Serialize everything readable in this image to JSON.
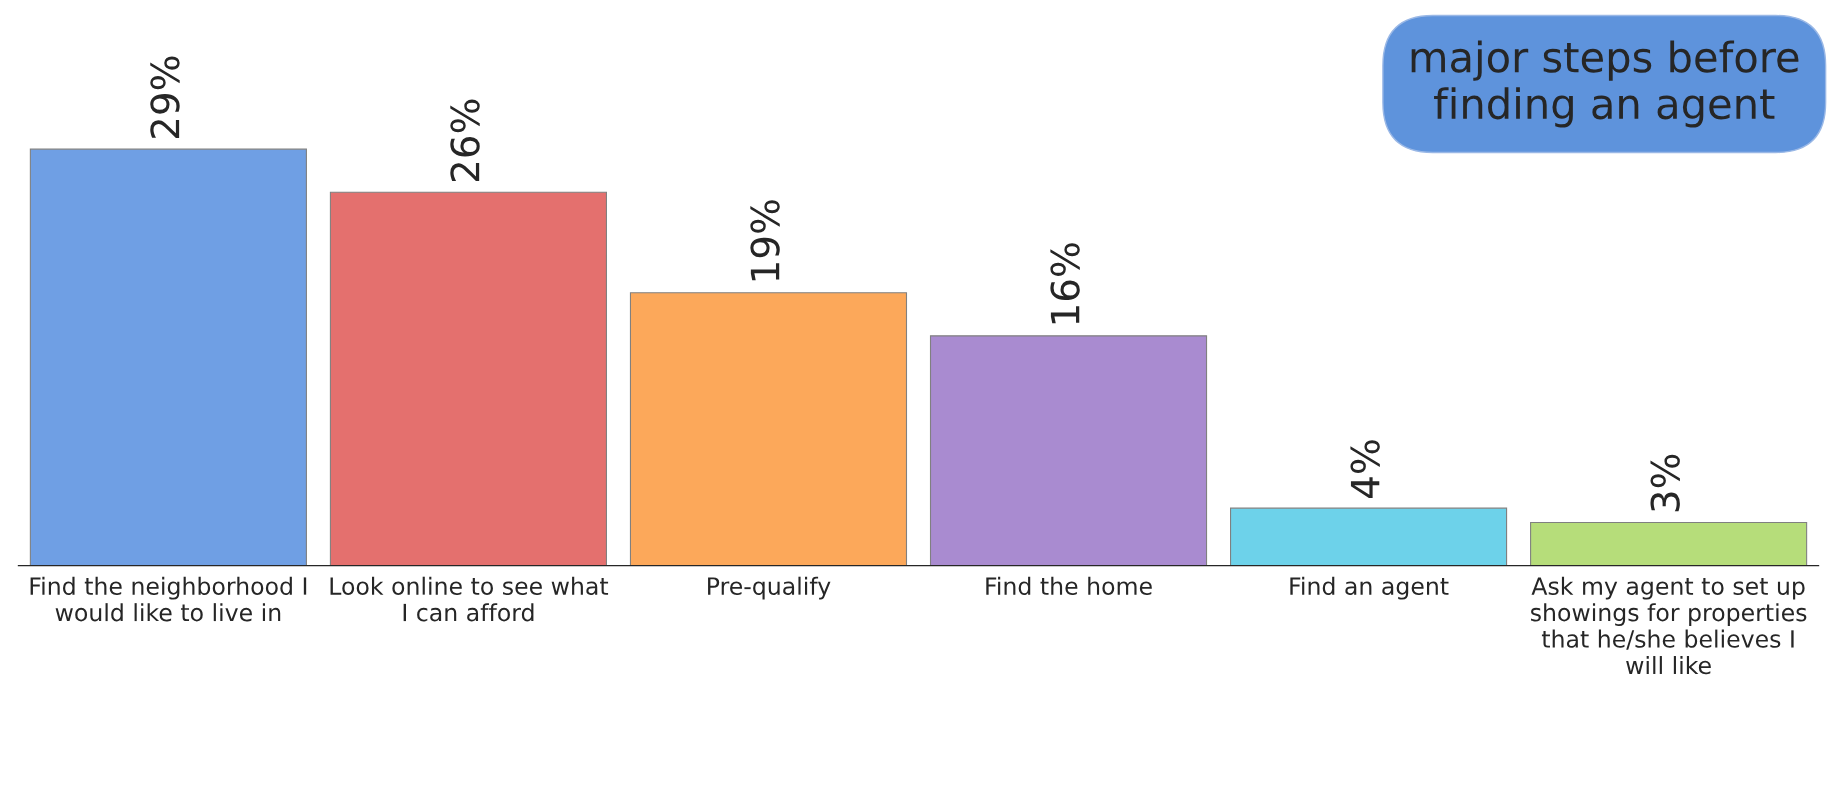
{
  "chart_data": {
    "type": "bar",
    "categories": [
      "Find the neighborhood I would like to live in",
      "Look online to see what I can afford",
      "Pre-qualify",
      "Find the home",
      "Find an agent",
      "Ask my agent to set up showings for properties that he/she believes I will like"
    ],
    "values": [
      29,
      26,
      19,
      16,
      4,
      3
    ],
    "colors": [
      "#6f9fe4",
      "#e4706e",
      "#fca85a",
      "#a98bd0",
      "#6dd2ea",
      "#b6dd7a"
    ],
    "value_labels": [
      "29%",
      "26%",
      "19%",
      "16%",
      "4%",
      "3%"
    ],
    "annotations": [
      "major steps before finding an agent"
    ],
    "grid": false,
    "legend": false
  }
}
